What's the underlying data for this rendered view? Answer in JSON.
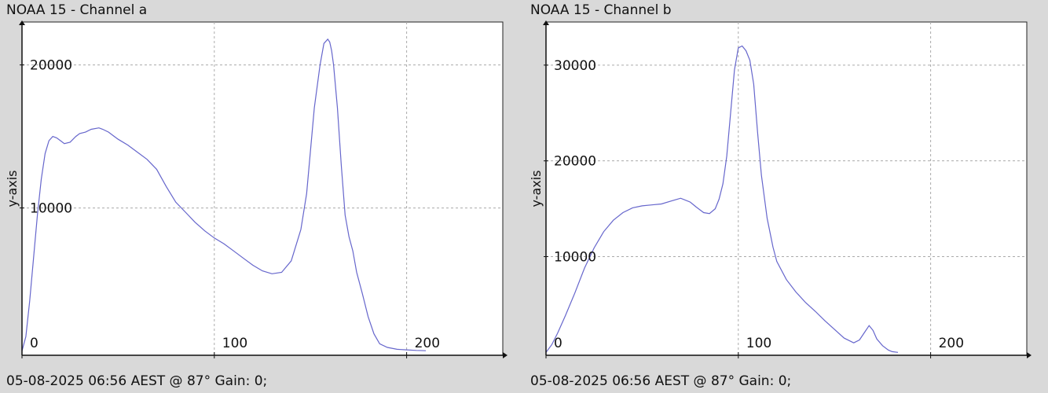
{
  "chart_data": [
    {
      "type": "line",
      "title": "NOAA 15 - Channel a",
      "footer": "05-08-2025 06:56 AEST @ 87° Gain: 0;",
      "xlabel": "",
      "ylabel": "y-axis",
      "xlim": [
        0,
        250
      ],
      "ylim": [
        -300,
        23000
      ],
      "xticks": [
        0,
        100,
        200
      ],
      "yticks": [
        10000,
        20000
      ],
      "grid": true,
      "line_color": "#6666cc",
      "series": [
        {
          "x": [
            0,
            2,
            4,
            6,
            8,
            10,
            12,
            14,
            16,
            18,
            20,
            22,
            25,
            28,
            30,
            33,
            36,
            40,
            42,
            45,
            48,
            50,
            55,
            60,
            65,
            70,
            75,
            80,
            85,
            90,
            95,
            100,
            105,
            110,
            115,
            120,
            125,
            130,
            135,
            140,
            145,
            148,
            150,
            152,
            155,
            157,
            159,
            160,
            161,
            162,
            164,
            166,
            168,
            170,
            172,
            174,
            177,
            180,
            183,
            186,
            190,
            195,
            200,
            205,
            210
          ],
          "y": [
            0,
            1000,
            3500,
            6500,
            9500,
            12000,
            13800,
            14700,
            15000,
            14900,
            14700,
            14500,
            14600,
            15000,
            15200,
            15300,
            15500,
            15600,
            15500,
            15300,
            15000,
            14800,
            14400,
            13900,
            13400,
            12700,
            11500,
            10400,
            9700,
            9000,
            8400,
            7900,
            7500,
            7000,
            6500,
            6000,
            5600,
            5400,
            5500,
            6300,
            8500,
            11000,
            14000,
            17000,
            20000,
            21500,
            21800,
            21600,
            21000,
            20000,
            17000,
            13000,
            9500,
            8000,
            7000,
            5500,
            4000,
            2400,
            1200,
            500,
            250,
            120,
            80,
            40,
            20
          ]
        }
      ]
    },
    {
      "type": "line",
      "title": "NOAA 15 - Channel b",
      "footer": "05-08-2025 06:56 AEST @ 87° Gain: 0;",
      "xlabel": "",
      "ylabel": "y-axis",
      "xlim": [
        0,
        250
      ],
      "ylim": [
        -300,
        34500
      ],
      "xticks": [
        0,
        100,
        200
      ],
      "yticks": [
        10000,
        20000,
        30000
      ],
      "grid": true,
      "line_color": "#6666cc",
      "series": [
        {
          "x": [
            0,
            3,
            6,
            10,
            15,
            20,
            25,
            30,
            35,
            40,
            45,
            50,
            55,
            60,
            65,
            70,
            75,
            78,
            82,
            85,
            88,
            90,
            92,
            94,
            96,
            98,
            100,
            102,
            104,
            106,
            108,
            110,
            112,
            115,
            118,
            120,
            125,
            130,
            135,
            140,
            145,
            150,
            155,
            160,
            163,
            166,
            168,
            170,
            172,
            175,
            178,
            180,
            183
          ],
          "y": [
            0,
            800,
            2000,
            3800,
            6200,
            8800,
            10900,
            12600,
            13800,
            14600,
            15100,
            15300,
            15400,
            15500,
            15800,
            16100,
            15700,
            15200,
            14600,
            14500,
            15000,
            16000,
            17600,
            20500,
            25000,
            29500,
            31800,
            32000,
            31500,
            30500,
            28000,
            23000,
            18500,
            14000,
            11000,
            9500,
            7600,
            6300,
            5200,
            4300,
            3300,
            2400,
            1500,
            1000,
            1300,
            2200,
            2800,
            2300,
            1400,
            700,
            250,
            80,
            0
          ]
        }
      ]
    }
  ]
}
